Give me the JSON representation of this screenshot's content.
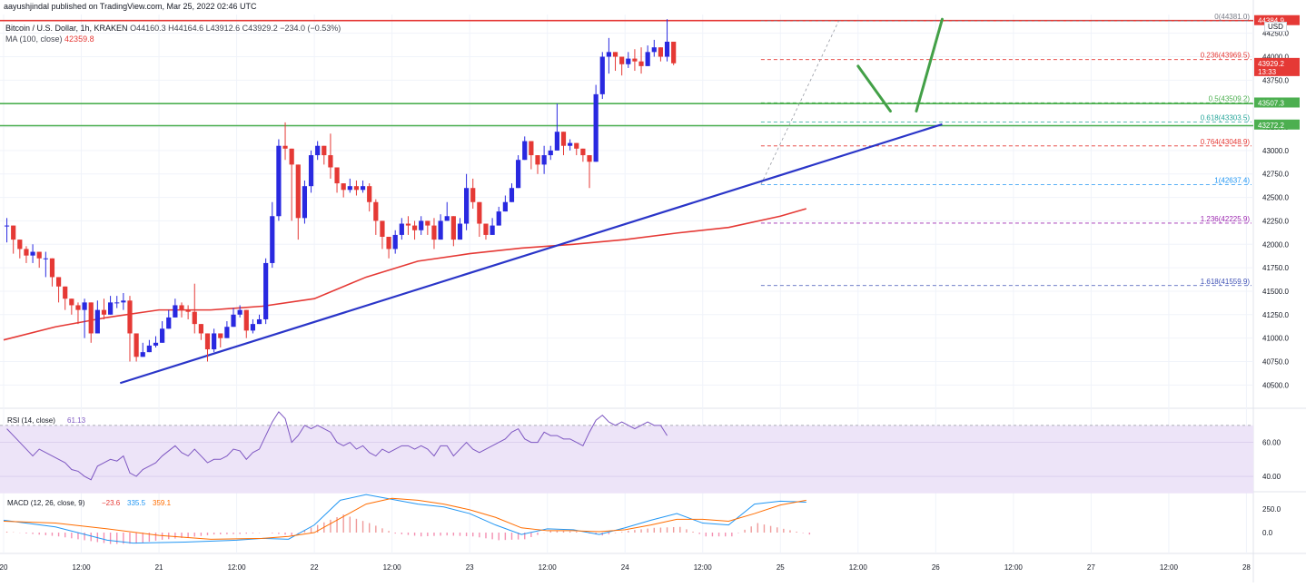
{
  "header": {
    "publisher_line": "aayushjindal published on TradingView.com, Mar 25, 2022 02:46 UTC",
    "symbol_line": "Bitcoin / U.S. Dollar, 1h, KRAKEN",
    "ohlc": "O44160.3 H44164.6 L43912.6 C43929.2 −234.0 (−0.53%)",
    "ma_label": "MA (100, close)",
    "ma_value": "42359.8",
    "currency": "USD"
  },
  "chart_data": {
    "type": "candlestick",
    "price_axis": {
      "ylim": [
        40300,
        44450
      ],
      "ticks": [
        "40500.0",
        "40750.0",
        "41000.0",
        "41250.0",
        "41500.0",
        "41750.0",
        "42000.0",
        "42250.0",
        "42500.0",
        "42750.0",
        "43000.0",
        "43250.0",
        "43500.0",
        "43750.0",
        "44000.0",
        "44250.0"
      ],
      "tick_values": [
        40500,
        40750,
        41000,
        41250,
        41500,
        41750,
        42000,
        42250,
        42500,
        42750,
        43000,
        43250,
        43500,
        43750,
        44000,
        44250
      ]
    },
    "time_axis": {
      "labels": [
        "20",
        "12:00",
        "21",
        "12:00",
        "22",
        "12:00",
        "23",
        "12:00",
        "24",
        "12:00",
        "25",
        "12:00",
        "26",
        "12:00",
        "27",
        "12:00",
        "28"
      ],
      "label_hours": [
        0,
        12,
        24,
        36,
        48,
        60,
        72,
        84,
        96,
        108,
        120,
        132,
        144,
        156,
        168,
        180,
        192
      ]
    },
    "candles": [
      [
        41.45,
        42.2,
        42.28,
        42.02
      ],
      [
        41.45,
        42.05,
        42.1,
        41.9
      ],
      [
        41.45,
        41.95,
        42.02,
        41.85
      ],
      [
        41.45,
        41.88,
        41.98,
        41.8
      ],
      [
        41.45,
        41.92,
        42.0,
        41.8
      ],
      [
        41.45,
        41.85,
        41.92,
        41.75
      ],
      [
        41.45,
        41.85,
        41.92,
        41.65
      ],
      [
        41.45,
        41.65,
        41.75,
        41.55
      ],
      [
        41.45,
        41.55,
        41.62,
        41.38
      ],
      [
        41.45,
        41.42,
        41.5,
        41.3
      ],
      [
        41.45,
        41.35,
        41.42,
        41.25
      ],
      [
        41.45,
        41.3,
        41.38,
        41.15
      ],
      [
        41.45,
        41.38,
        41.42,
        41.0
      ],
      [
        41.45,
        41.05,
        41.25,
        40.95
      ],
      [
        41.45,
        41.3,
        41.4,
        41.2
      ],
      [
        41.45,
        41.25,
        41.42,
        41.2
      ],
      [
        41.45,
        41.38,
        41.45,
        41.3
      ],
      [
        41.45,
        41.38,
        41.45,
        41.32
      ],
      [
        41.45,
        41.4,
        41.48,
        41.3
      ],
      [
        41.45,
        41.05,
        41.45,
        40.75
      ],
      [
        41.45,
        40.8,
        40.88,
        40.75
      ],
      [
        41.45,
        40.85,
        40.95,
        40.8
      ],
      [
        41.45,
        40.92,
        40.98,
        40.85
      ],
      [
        41.45,
        40.95,
        41.02,
        40.9
      ],
      [
        41.45,
        41.1,
        41.18,
        41.0
      ],
      [
        41.45,
        41.22,
        41.3,
        41.15
      ],
      [
        41.45,
        41.35,
        41.42,
        41.28
      ],
      [
        41.45,
        41.3,
        41.38,
        41.22
      ],
      [
        41.45,
        41.28,
        41.35,
        41.2
      ],
      [
        41.45,
        41.15,
        41.58,
        41.05
      ],
      [
        41.45,
        41.05,
        41.12,
        40.98
      ],
      [
        41.45,
        40.88,
        40.95,
        40.75
      ],
      [
        41.45,
        41.05,
        41.1,
        40.85
      ],
      [
        41.45,
        41.0,
        41.05,
        40.9
      ],
      [
        41.45,
        41.12,
        41.18,
        41.05
      ],
      [
        41.45,
        41.25,
        41.32,
        41.18
      ],
      [
        41.45,
        41.3,
        41.35,
        41.22
      ],
      [
        41.45,
        41.08,
        41.22,
        41.0
      ],
      [
        41.45,
        41.15,
        41.2,
        41.05
      ],
      [
        41.45,
        41.2,
        41.25,
        41.15
      ],
      [
        41.45,
        41.8,
        41.85,
        41.15
      ],
      [
        41.45,
        42.3,
        42.45,
        41.75
      ],
      [
        41.45,
        43.05,
        43.12,
        42.25
      ],
      [
        41.45,
        43.02,
        43.3,
        42.9
      ],
      [
        41.45,
        42.85,
        42.95,
        42.25
      ],
      [
        41.45,
        42.28,
        42.72,
        42.05
      ],
      [
        41.45,
        42.62,
        42.68,
        42.22
      ],
      [
        41.45,
        42.95,
        43.0,
        42.55
      ],
      [
        41.45,
        43.05,
        43.1,
        42.9
      ],
      [
        41.45,
        42.95,
        43.05,
        42.85
      ],
      [
        41.45,
        42.82,
        43.18,
        42.7
      ],
      [
        41.45,
        42.65,
        42.78,
        42.55
      ],
      [
        41.45,
        42.58,
        42.65,
        42.5
      ],
      [
        41.45,
        42.62,
        42.7,
        42.55
      ],
      [
        41.45,
        42.58,
        42.68,
        42.52
      ],
      [
        41.45,
        42.62,
        42.68,
        42.55
      ],
      [
        41.45,
        42.45,
        42.65,
        42.35
      ],
      [
        41.45,
        42.25,
        42.48,
        42.1
      ],
      [
        41.45,
        42.08,
        42.25,
        41.95
      ],
      [
        41.45,
        41.95,
        42.05,
        41.85
      ],
      [
        41.45,
        42.1,
        42.15,
        41.9
      ],
      [
        41.45,
        42.22,
        42.28,
        42.05
      ],
      [
        41.45,
        42.2,
        42.3,
        42.1
      ],
      [
        41.45,
        42.15,
        42.25,
        42.05
      ],
      [
        41.45,
        42.25,
        42.3,
        42.1
      ],
      [
        41.45,
        42.2,
        42.25,
        42.1
      ],
      [
        41.45,
        42.05,
        42.28,
        41.95
      ],
      [
        41.45,
        42.25,
        42.32,
        42.15
      ],
      [
        41.45,
        42.3,
        42.45,
        42.25
      ],
      [
        41.45,
        42.05,
        42.2,
        41.98
      ],
      [
        41.45,
        42.22,
        42.28,
        42.05
      ],
      [
        41.45,
        42.6,
        42.75,
        42.15
      ],
      [
        41.45,
        42.45,
        42.7,
        42.38
      ],
      [
        41.45,
        42.22,
        42.42,
        42.08
      ],
      [
        41.45,
        42.1,
        42.2,
        42.05
      ],
      [
        41.45,
        42.2,
        42.28,
        42.15
      ],
      [
        41.45,
        42.35,
        42.4,
        42.25
      ],
      [
        41.45,
        42.45,
        42.52,
        42.38
      ],
      [
        41.45,
        42.6,
        42.65,
        42.5
      ],
      [
        41.45,
        42.9,
        42.95,
        42.6
      ],
      [
        41.45,
        43.1,
        43.15,
        42.9
      ],
      [
        41.45,
        42.95,
        43.05,
        42.8
      ],
      [
        41.45,
        42.85,
        42.92,
        42.75
      ],
      [
        41.45,
        42.95,
        43.05,
        42.75
      ],
      [
        41.45,
        43.0,
        43.05,
        42.9
      ],
      [
        41.45,
        43.2,
        43.5,
        43.0
      ],
      [
        41.45,
        43.05,
        43.15,
        42.95
      ],
      [
        41.45,
        43.08,
        43.12,
        43.0
      ],
      [
        41.45,
        43.02,
        43.08,
        42.95
      ],
      [
        41.45,
        42.95,
        43.02,
        42.88
      ],
      [
        41.45,
        42.88,
        42.95,
        42.6
      ],
      [
        41.45,
        43.6,
        43.7,
        42.9
      ],
      [
        41.45,
        44.0,
        44.05,
        43.55
      ],
      [
        41.45,
        44.05,
        44.2,
        43.82
      ],
      [
        41.45,
        44.0,
        44.05,
        43.85
      ],
      [
        41.45,
        43.92,
        44.0,
        43.8
      ],
      [
        41.45,
        43.98,
        44.05,
        43.88
      ],
      [
        41.45,
        43.95,
        44.08,
        43.85
      ],
      [
        41.45,
        43.9,
        44.1,
        43.82
      ],
      [
        41.45,
        44.05,
        44.12,
        43.9
      ],
      [
        41.45,
        44.1,
        44.18,
        44.0
      ],
      [
        41.45,
        44.0,
        44.05,
        43.95
      ],
      [
        41.45,
        44.16,
        44.4,
        43.95
      ],
      [
        41.45,
        43.93,
        44.16,
        43.91
      ]
    ],
    "ma100": [
      [
        0,
        40.98
      ],
      [
        8,
        41.12
      ],
      [
        16,
        41.22
      ],
      [
        24,
        41.3
      ],
      [
        32,
        41.3
      ],
      [
        40,
        41.34
      ],
      [
        48,
        41.42
      ],
      [
        56,
        41.65
      ],
      [
        64,
        41.82
      ],
      [
        72,
        41.9
      ],
      [
        80,
        41.96
      ],
      [
        88,
        42.0
      ],
      [
        96,
        42.05
      ],
      [
        104,
        42.12
      ],
      [
        112,
        42.18
      ],
      [
        120,
        42.3
      ],
      [
        124,
        42.38
      ]
    ],
    "trendline": {
      "x": [
        18,
        145
      ],
      "y": [
        40.52,
        43.28
      ]
    },
    "horizontal_lines": [
      {
        "y": 44.385,
        "color": "#e53935"
      },
      {
        "y": 43.5,
        "color": "#4caf50"
      },
      {
        "y": 43.265,
        "color": "#4caf50"
      }
    ],
    "fib_levels": [
      {
        "label": "0(44381.0)",
        "y": 44.381,
        "color": "#787b86"
      },
      {
        "label": "0.236(43969.5)",
        "y": 43.9695,
        "color": "#e53935"
      },
      {
        "label": "0.5(43509.2)",
        "y": 43.5092,
        "color": "#4caf50"
      },
      {
        "label": "0.618(43303.5)",
        "y": 43.3035,
        "color": "#26a69a"
      },
      {
        "label": "0.764(43048.9)",
        "y": 43.0489,
        "color": "#e53935"
      },
      {
        "label": "1(42637.4)",
        "y": 42.6374,
        "color": "#2196f3"
      },
      {
        "label": "1.236(42225.9)",
        "y": 42.2259,
        "color": "#9c27b0"
      },
      {
        "label": "1.618(41559.9)",
        "y": 41.5599,
        "color": "#3f51b5"
      }
    ],
    "projection_path": [
      [
        132,
        43.9
      ],
      [
        137,
        43.42
      ],
      [
        141,
        43.42
      ],
      [
        145,
        44.4
      ]
    ],
    "price_badges": [
      {
        "text": "44384.9",
        "y": 44.385,
        "bg": "#e53935"
      },
      {
        "text": "43929.2",
        "y": 43.929,
        "bg": "#e53935",
        "sub": "13:33"
      },
      {
        "text": "43507.3",
        "y": 43.507,
        "bg": "#4caf50"
      },
      {
        "text": "43272.2",
        "y": 43.272,
        "bg": "#4caf50"
      }
    ],
    "rsi": {
      "label": "RSI (14, close)",
      "value": "61.13",
      "ylim": [
        32,
        79
      ],
      "ticks": [
        "60.00",
        "40.00"
      ],
      "tick_values": [
        60,
        40
      ],
      "band": [
        30,
        70
      ],
      "series": [
        68,
        64,
        60,
        56,
        52,
        56,
        54,
        52,
        50,
        48,
        44,
        43,
        40,
        38,
        46,
        48,
        50,
        49,
        52,
        42,
        40,
        44,
        46,
        48,
        52,
        55,
        58,
        54,
        52,
        56,
        52,
        48,
        50,
        50,
        52,
        56,
        55,
        50,
        54,
        56,
        64,
        72,
        78,
        74,
        60,
        64,
        70,
        68,
        70,
        68,
        66,
        60,
        58,
        60,
        56,
        58,
        54,
        52,
        56,
        54,
        56,
        58,
        58,
        56,
        58,
        56,
        52,
        58,
        58,
        52,
        56,
        60,
        56,
        54,
        56,
        58,
        60,
        62,
        66,
        68,
        62,
        60,
        60,
        66,
        64,
        64,
        62,
        62,
        60,
        58,
        66,
        73,
        76,
        72,
        70,
        72,
        70,
        68,
        70,
        72,
        70,
        70,
        64
      ]
    },
    "macd": {
      "label": "MACD (12, 26, close, 9)",
      "values": [
        "−23.6",
        "335.5",
        "359.1"
      ],
      "ylim": [
        -200,
        420
      ],
      "ticks": [
        "250.0",
        "0.0"
      ],
      "tick_values": [
        250,
        0
      ],
      "macd_line": [
        [
          0,
          130
        ],
        [
          8,
          60
        ],
        [
          16,
          -80
        ],
        [
          20,
          -110
        ],
        [
          28,
          -100
        ],
        [
          36,
          -80
        ],
        [
          40,
          -60
        ],
        [
          44,
          -70
        ],
        [
          48,
          80
        ],
        [
          52,
          340
        ],
        [
          56,
          400
        ],
        [
          60,
          350
        ],
        [
          64,
          300
        ],
        [
          68,
          270
        ],
        [
          72,
          200
        ],
        [
          76,
          80
        ],
        [
          80,
          -20
        ],
        [
          84,
          40
        ],
        [
          88,
          30
        ],
        [
          92,
          -20
        ],
        [
          96,
          50
        ],
        [
          100,
          130
        ],
        [
          104,
          200
        ],
        [
          108,
          100
        ],
        [
          112,
          80
        ],
        [
          116,
          300
        ],
        [
          120,
          330
        ],
        [
          124,
          320
        ]
      ],
      "signal_line": [
        [
          0,
          120
        ],
        [
          8,
          100
        ],
        [
          16,
          40
        ],
        [
          24,
          -30
        ],
        [
          32,
          -70
        ],
        [
          40,
          -60
        ],
        [
          44,
          -40
        ],
        [
          48,
          0
        ],
        [
          52,
          150
        ],
        [
          56,
          300
        ],
        [
          60,
          360
        ],
        [
          64,
          340
        ],
        [
          68,
          300
        ],
        [
          72,
          240
        ],
        [
          76,
          160
        ],
        [
          80,
          50
        ],
        [
          84,
          20
        ],
        [
          88,
          20
        ],
        [
          92,
          10
        ],
        [
          96,
          30
        ],
        [
          100,
          80
        ],
        [
          104,
          140
        ],
        [
          108,
          140
        ],
        [
          112,
          120
        ],
        [
          116,
          200
        ],
        [
          120,
          290
        ],
        [
          124,
          340
        ]
      ]
    },
    "xlabel": "",
    "ylabel": ""
  }
}
